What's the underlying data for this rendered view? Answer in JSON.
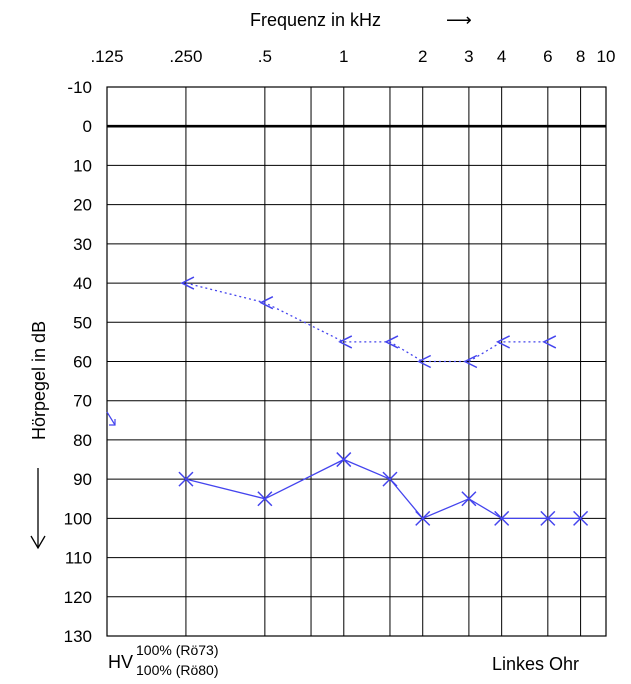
{
  "chart_data": {
    "type": "line",
    "title": "",
    "xlabel": "Frequenz in kHz",
    "ylabel": "Hörpegel in dB",
    "x_scale": "log",
    "x_ticks": [
      {
        "value": 0.125,
        "label": ".125"
      },
      {
        "value": 0.25,
        "label": ".250"
      },
      {
        "value": 0.5,
        "label": ".5"
      },
      {
        "value": 1,
        "label": "1"
      },
      {
        "value": 2,
        "label": "2"
      },
      {
        "value": 3,
        "label": "3"
      },
      {
        "value": 4,
        "label": "4"
      },
      {
        "value": 6,
        "label": "6"
      },
      {
        "value": 8,
        "label": "8"
      },
      {
        "value": 10,
        "label": "10"
      }
    ],
    "x_gridlines": [
      0.125,
      0.25,
      0.5,
      0.75,
      1,
      1.5,
      2,
      3,
      4,
      6,
      8,
      10
    ],
    "y_ticks": [
      -10,
      0,
      10,
      20,
      30,
      40,
      50,
      60,
      70,
      80,
      90,
      100,
      110,
      120,
      130
    ],
    "ylim": [
      -10,
      130
    ],
    "y_inverted": true,
    "grid": true,
    "series": [
      {
        "name": "",
        "marker": "cross",
        "line": "solid",
        "x": [
          0.25,
          0.5,
          1,
          1.5,
          2,
          3,
          4,
          6,
          8
        ],
        "y": [
          90,
          95,
          85,
          90,
          100,
          95,
          100,
          100,
          100
        ]
      },
      {
        "name": "",
        "marker": "left-angle",
        "line": "dotted",
        "x": [
          0.25,
          0.5,
          1,
          1.5,
          2,
          3,
          4,
          6
        ],
        "y": [
          40,
          45,
          55,
          55,
          60,
          60,
          55,
          55
        ]
      }
    ],
    "color": "#4444ee",
    "annotations": {
      "arrow_symbol": "⟶",
      "hv": "HV",
      "hv_line1": "100% (Rö73)",
      "hv_line2": "100% (Rö80)",
      "ear": "Linkes Ohr"
    }
  }
}
